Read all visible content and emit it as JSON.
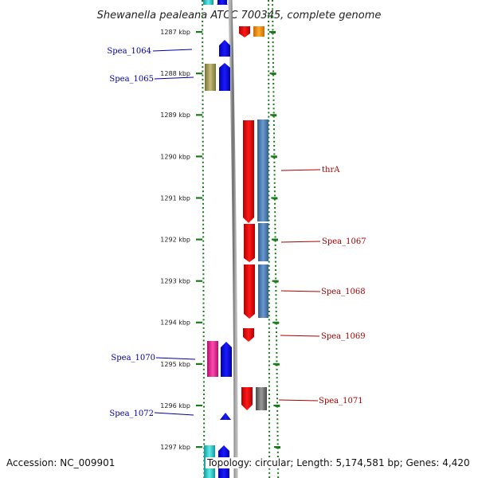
{
  "header": {
    "title": "Shewanella pealeana ATCC 700345, complete genome"
  },
  "footer": {
    "accession": "Accession: NC_009901",
    "topology": "Topology: circular; Length: 5,174,581 bp; Genes: 4,420"
  },
  "kbp_labels": [
    "1287 kbp",
    "1288 kbp",
    "1289 kbp",
    "1290 kbp",
    "1291 kbp",
    "1292 kbp",
    "1293 kbp",
    "1294 kbp",
    "1295 kbp",
    "1296 kbp",
    "1297 kbp"
  ],
  "left_labels": [
    "Spea_1064",
    "Spea_1065",
    "Spea_1070",
    "Spea_1072"
  ],
  "right_labels": [
    "thrA",
    "Spea_1067",
    "Spea_1068",
    "Spea_1069",
    "Spea_1071"
  ],
  "colors": {
    "tick": "#1a7a1a",
    "backbone": "#8a8a8a",
    "forward_cds": "#0000ee",
    "reverse_cds": "#ee0000",
    "cog_steelblue": "#4b7cb0",
    "cog_magenta": "#e0208c",
    "cog_olive": "#a39a58",
    "cog_cyan": "#20c8c8",
    "cog_orange": "#f08a10",
    "cog_gray": "#707070"
  }
}
